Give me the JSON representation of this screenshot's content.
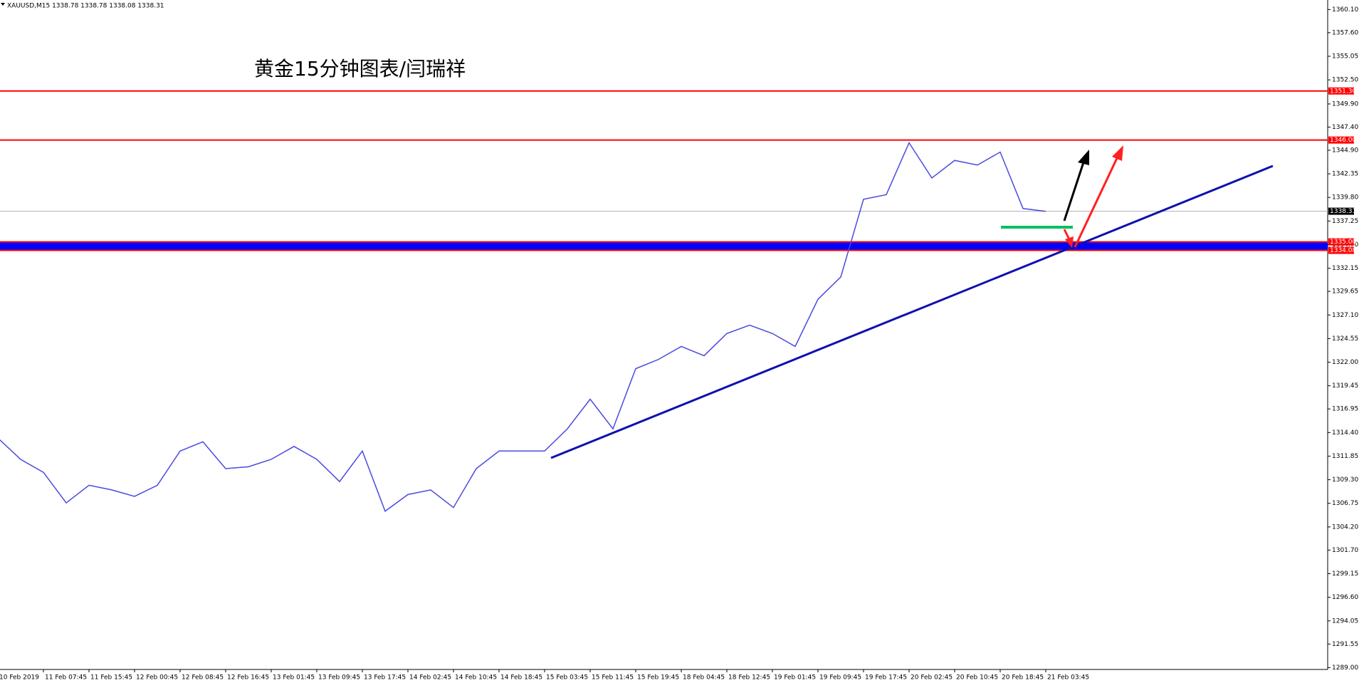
{
  "chart_data": {
    "type": "line",
    "header": "XAUUSD,M15  1338.78 1338.78 1338.08 1338.31",
    "title": "黄金15分钟图表/闫瑞祥",
    "categories": [
      "10 Feb 2019",
      null,
      "11 Feb 07:45",
      null,
      "11 Feb 15:45",
      null,
      "12 Feb 00:45",
      null,
      "12 Feb 08:45",
      null,
      "12 Feb 16:45",
      null,
      "13 Feb 01:45",
      null,
      "13 Feb 09:45",
      null,
      "13 Feb 17:45",
      null,
      "14 Feb 02:45",
      null,
      "14 Feb 10:45",
      null,
      "14 Feb 18:45",
      null,
      "15 Feb 03:45",
      null,
      "15 Feb 11:45",
      null,
      "15 Feb 19:45",
      null,
      "18 Feb 04:45",
      null,
      "18 Feb 12:45",
      null,
      "19 Feb 01:45",
      null,
      "19 Feb 09:45",
      null,
      "19 Feb 17:45",
      null,
      "20 Feb 02:45",
      null,
      "20 Feb 10:45",
      null,
      "20 Feb 18:45",
      null,
      "21 Feb 03:45"
    ],
    "series": [
      {
        "name": "XAUUSD,M15",
        "color": "#4a4ae0",
        "values": [
          1313.8,
          1311.5,
          1310.1,
          1306.8,
          1308.7,
          1308.2,
          1307.5,
          1308.7,
          1312.4,
          1313.4,
          1310.5,
          1310.7,
          1311.5,
          1312.9,
          1311.5,
          1309.1,
          1312.4,
          1305.9,
          1307.7,
          1308.2,
          1306.3,
          1310.5,
          1312.4,
          1312.4,
          1312.4,
          1314.8,
          1318.0,
          1314.8,
          1321.3,
          1322.3,
          1323.7,
          1322.7,
          1325.1,
          1326.0,
          1325.1,
          1323.7,
          1328.8,
          1331.2,
          1339.6,
          1340.1,
          1345.7,
          1341.9,
          1343.8,
          1343.3,
          1344.7,
          1338.6,
          1338.3
        ]
      }
    ],
    "ylim": [
      1288.8,
      1361.13
    ],
    "yticks": [
      {
        "value": 1360.1,
        "label": "1360.10"
      },
      {
        "value": 1357.6,
        "label": "1357.60"
      },
      {
        "value": 1355.05,
        "label": "1355.05"
      },
      {
        "value": 1352.5,
        "label": "1352.50"
      },
      {
        "value": 1349.9,
        "label": "1349.90"
      },
      {
        "value": 1347.4,
        "label": "1347.40"
      },
      {
        "value": 1344.9,
        "label": "1344.90"
      },
      {
        "value": 1342.35,
        "label": "1342.35"
      },
      {
        "value": 1339.8,
        "label": "1339.80"
      },
      {
        "value": 1337.25,
        "label": "1337.25"
      },
      {
        "value": 1334.7,
        "label": "1334.70"
      },
      {
        "value": 1332.15,
        "label": "1332.15"
      },
      {
        "value": 1329.65,
        "label": "1329.65"
      },
      {
        "value": 1327.1,
        "label": "1327.10"
      },
      {
        "value": 1324.55,
        "label": "1324.55"
      },
      {
        "value": 1322.0,
        "label": "1322.00"
      },
      {
        "value": 1319.45,
        "label": "1319.45"
      },
      {
        "value": 1316.95,
        "label": "1316.95"
      },
      {
        "value": 1314.4,
        "label": "1314.40"
      },
      {
        "value": 1311.85,
        "label": "1311.85"
      },
      {
        "value": 1309.3,
        "label": "1309.30"
      },
      {
        "value": 1306.75,
        "label": "1306.75"
      },
      {
        "value": 1304.2,
        "label": "1304.20"
      },
      {
        "value": 1301.7,
        "label": "1301.70"
      },
      {
        "value": 1299.15,
        "label": "1299.15"
      },
      {
        "value": 1296.6,
        "label": "1296.60"
      },
      {
        "value": 1294.05,
        "label": "1294.05"
      },
      {
        "value": 1291.55,
        "label": "1291.55"
      },
      {
        "value": 1289.0,
        "label": "1289.00"
      }
    ],
    "levels": [
      {
        "value": 1351.3,
        "label": "1351.30"
      },
      {
        "value": 1346.0,
        "label": "1346.00"
      },
      {
        "value": 1335.0,
        "label": "1335.00"
      },
      {
        "value": 1334.08,
        "label": "1334.08"
      }
    ],
    "level_color": "#ff0000",
    "band_color": "#0000ff",
    "last_price": {
      "value": 1338.31,
      "label": "1338.31"
    }
  }
}
